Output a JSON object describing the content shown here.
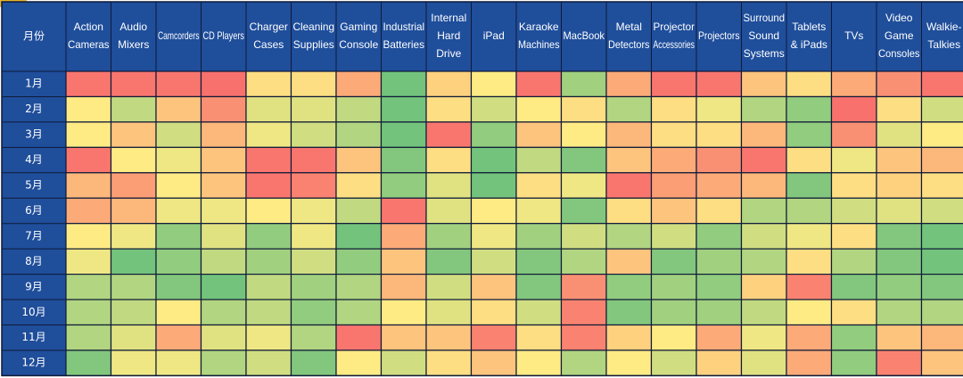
{
  "chart_data": {
    "type": "heatmap",
    "corner_label": "月份",
    "columns": [
      "Action Cameras",
      "Audio Mixers",
      "Camcorders",
      "CD Players",
      "Charger Cases",
      "Cleaning Supplies",
      "Gaming Console",
      "Industrial Batteries",
      "Internal Hard Drive",
      "iPad",
      "Karaoke Machines",
      "MacBook",
      "Metal Detectors",
      "Projector Accessories",
      "Projectors",
      "Surround Sound Systems",
      "Tablets & iPads",
      "TVs",
      "Video Game Consoles",
      "Walkie-Talkies"
    ],
    "rows": [
      "1月",
      "2月",
      "3月",
      "4月",
      "5月",
      "6月",
      "7月",
      "8月",
      "9月",
      "10月",
      "11月",
      "12月"
    ],
    "scale": {
      "min": 0,
      "max": 10,
      "low_color": "#f8696b",
      "mid_color": "#ffeb84",
      "high_color": "#63be7b"
    },
    "values": [
      [
        0.5,
        0.5,
        0.5,
        0.3,
        4.5,
        4.5,
        2.5,
        9.5,
        4.0,
        5.0,
        0.5,
        8.0,
        2.5,
        0.5,
        0.5,
        3.5,
        4.5,
        2.5,
        1.5,
        0.5
      ],
      [
        5.0,
        7.0,
        3.5,
        1.5,
        6.0,
        6.0,
        7.0,
        9.5,
        4.5,
        6.5,
        5.0,
        4.5,
        7.5,
        4.5,
        5.5,
        7.5,
        8.5,
        0.3,
        4.5,
        6.5
      ],
      [
        5.0,
        3.5,
        6.5,
        3.0,
        5.5,
        6.5,
        7.5,
        9.5,
        0.5,
        8.5,
        3.5,
        5.0,
        3.0,
        4.5,
        4.5,
        3.0,
        8.5,
        1.5,
        6.0,
        5.0
      ],
      [
        0.5,
        5.0,
        5.5,
        3.5,
        0.5,
        0.5,
        3.5,
        9.0,
        4.5,
        9.5,
        7.0,
        9.0,
        3.5,
        2.5,
        1.5,
        0.5,
        4.5,
        5.5,
        3.5,
        3.0
      ],
      [
        3.0,
        2.0,
        5.0,
        3.5,
        0.5,
        1.0,
        4.5,
        8.5,
        6.0,
        9.5,
        4.5,
        5.5,
        0.5,
        2.0,
        2.5,
        3.0,
        9.0,
        4.5,
        4.0,
        4.5
      ],
      [
        2.5,
        3.0,
        5.5,
        5.5,
        5.0,
        5.5,
        7.0,
        0.5,
        6.0,
        5.0,
        5.5,
        9.0,
        4.5,
        3.5,
        4.5,
        7.5,
        7.5,
        6.5,
        6.0,
        6.5
      ],
      [
        5.0,
        5.5,
        8.5,
        6.0,
        8.5,
        5.5,
        9.5,
        2.5,
        8.0,
        5.5,
        8.0,
        6.5,
        7.5,
        6.5,
        8.5,
        6.5,
        5.5,
        4.5,
        9.0,
        9.5
      ],
      [
        5.5,
        9.5,
        8.5,
        7.0,
        8.0,
        6.5,
        8.5,
        3.5,
        9.0,
        6.5,
        9.0,
        7.5,
        3.5,
        9.0,
        8.0,
        7.5,
        4.5,
        7.5,
        9.0,
        9.5
      ],
      [
        7.5,
        7.5,
        9.0,
        9.5,
        7.0,
        8.0,
        7.5,
        3.0,
        6.5,
        3.5,
        9.0,
        1.5,
        8.5,
        8.0,
        8.5,
        4.0,
        1.0,
        9.0,
        8.5,
        9.0
      ],
      [
        7.5,
        7.0,
        5.0,
        7.5,
        7.0,
        8.5,
        7.5,
        5.0,
        6.0,
        4.5,
        6.5,
        1.0,
        9.0,
        8.0,
        8.0,
        7.0,
        5.0,
        4.5,
        7.5,
        7.5
      ],
      [
        7.5,
        6.0,
        2.5,
        6.0,
        5.5,
        7.5,
        0.5,
        3.5,
        3.5,
        1.0,
        4.5,
        1.0,
        4.0,
        5.0,
        2.5,
        5.5,
        2.5,
        8.5,
        3.5,
        3.0
      ],
      [
        9.0,
        5.5,
        5.5,
        7.5,
        6.5,
        9.0,
        5.0,
        6.5,
        4.5,
        3.5,
        5.0,
        7.5,
        5.0,
        6.5,
        4.0,
        6.0,
        2.5,
        8.5,
        1.0,
        3.5
      ]
    ]
  }
}
